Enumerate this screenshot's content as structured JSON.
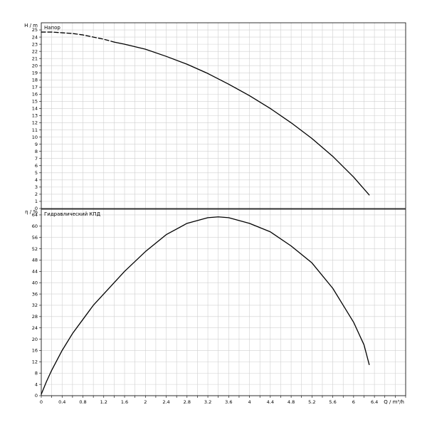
{
  "chart_data": [
    {
      "type": "line",
      "title": "Напор",
      "ylabel": "H / m",
      "xlim": [
        0,
        7
      ],
      "ylim": [
        0,
        26
      ],
      "x_ticks": [
        0,
        0.4,
        0.8,
        1.2,
        1.6,
        2,
        2.4,
        2.8,
        3.2,
        3.6,
        4,
        4.4,
        4.8,
        5.2,
        5.6,
        6,
        6.4
      ],
      "x_tick_labels": [
        "0",
        "0.4",
        "0.8",
        "1.2",
        "1.6",
        "2",
        "2.4",
        "2.8",
        "3.2",
        "3.6",
        "4",
        "4.4",
        "4.8",
        "5.2",
        "5.6",
        "6",
        "6.4"
      ],
      "y_ticks": [
        0,
        1,
        2,
        3,
        4,
        5,
        6,
        7,
        8,
        9,
        10,
        11,
        12,
        13,
        14,
        15,
        16,
        17,
        18,
        19,
        20,
        21,
        22,
        23,
        24,
        25
      ],
      "y_tick_labels": [
        "0",
        "1",
        "2",
        "3",
        "4",
        "5",
        "6",
        "7",
        "8",
        "9",
        "10",
        "11",
        "12",
        "13",
        "14",
        "15",
        "16",
        "17",
        "18",
        "19",
        "20",
        "21",
        "22",
        "23",
        "24",
        "25"
      ],
      "grid": true,
      "series": [
        {
          "x": [
            0,
            0.2,
            0.4,
            0.6,
            0.8,
            1.0,
            1.2,
            1.4
          ],
          "y": [
            24.7,
            24.7,
            24.6,
            24.5,
            24.3,
            24.0,
            23.7,
            23.3
          ],
          "style": "dashed",
          "color": "#000000"
        },
        {
          "x": [
            1.4,
            1.6,
            2.0,
            2.4,
            2.8,
            3.2,
            3.6,
            4.0,
            4.4,
            4.8,
            5.2,
            5.6,
            6.0,
            6.3
          ],
          "y": [
            23.3,
            23.0,
            22.3,
            21.3,
            20.2,
            18.9,
            17.4,
            15.8,
            14.0,
            12.0,
            9.8,
            7.3,
            4.4,
            1.9
          ],
          "style": "solid",
          "color": "#000000"
        }
      ]
    },
    {
      "type": "line",
      "title": "Гидравлический КПД",
      "ylabel": "η / %",
      "xlabel": "Q / m³/h",
      "xlim": [
        0,
        7
      ],
      "ylim": [
        0,
        66
      ],
      "x_ticks": [
        0,
        0.4,
        0.8,
        1.2,
        1.6,
        2,
        2.4,
        2.8,
        3.2,
        3.6,
        4,
        4.4,
        4.8,
        5.2,
        5.6,
        6,
        6.4
      ],
      "x_tick_labels": [
        "0",
        "0.4",
        "0.8",
        "1.2",
        "1.6",
        "2",
        "2.4",
        "2.8",
        "3.2",
        "3.6",
        "4",
        "4.4",
        "4.8",
        "5.2",
        "5.6",
        "6",
        "6.4"
      ],
      "y_ticks": [
        0,
        4,
        8,
        12,
        16,
        20,
        24,
        28,
        32,
        36,
        40,
        44,
        48,
        52,
        56,
        60,
        64
      ],
      "y_tick_labels": [
        "0",
        "4",
        "8",
        "12",
        "16",
        "20",
        "24",
        "28",
        "32",
        "36",
        "40",
        "44",
        "48",
        "52",
        "56",
        "60",
        "64"
      ],
      "grid": true,
      "series": [
        {
          "x": [
            0,
            0.1,
            0.2,
            0.4,
            0.6,
            0.8,
            1.0,
            1.2,
            1.6,
            2.0,
            2.4,
            2.8,
            3.2,
            3.4,
            3.6,
            4.0,
            4.4,
            4.8,
            5.2,
            5.6,
            5.8,
            6.0,
            6.2,
            6.3
          ],
          "y": [
            0.5,
            5,
            9,
            16,
            22,
            27,
            32,
            36,
            44,
            51,
            57,
            61,
            63,
            63.3,
            63,
            61,
            58,
            53,
            47,
            38,
            32,
            26,
            18,
            11
          ],
          "style": "solid",
          "color": "#000000"
        }
      ]
    }
  ]
}
